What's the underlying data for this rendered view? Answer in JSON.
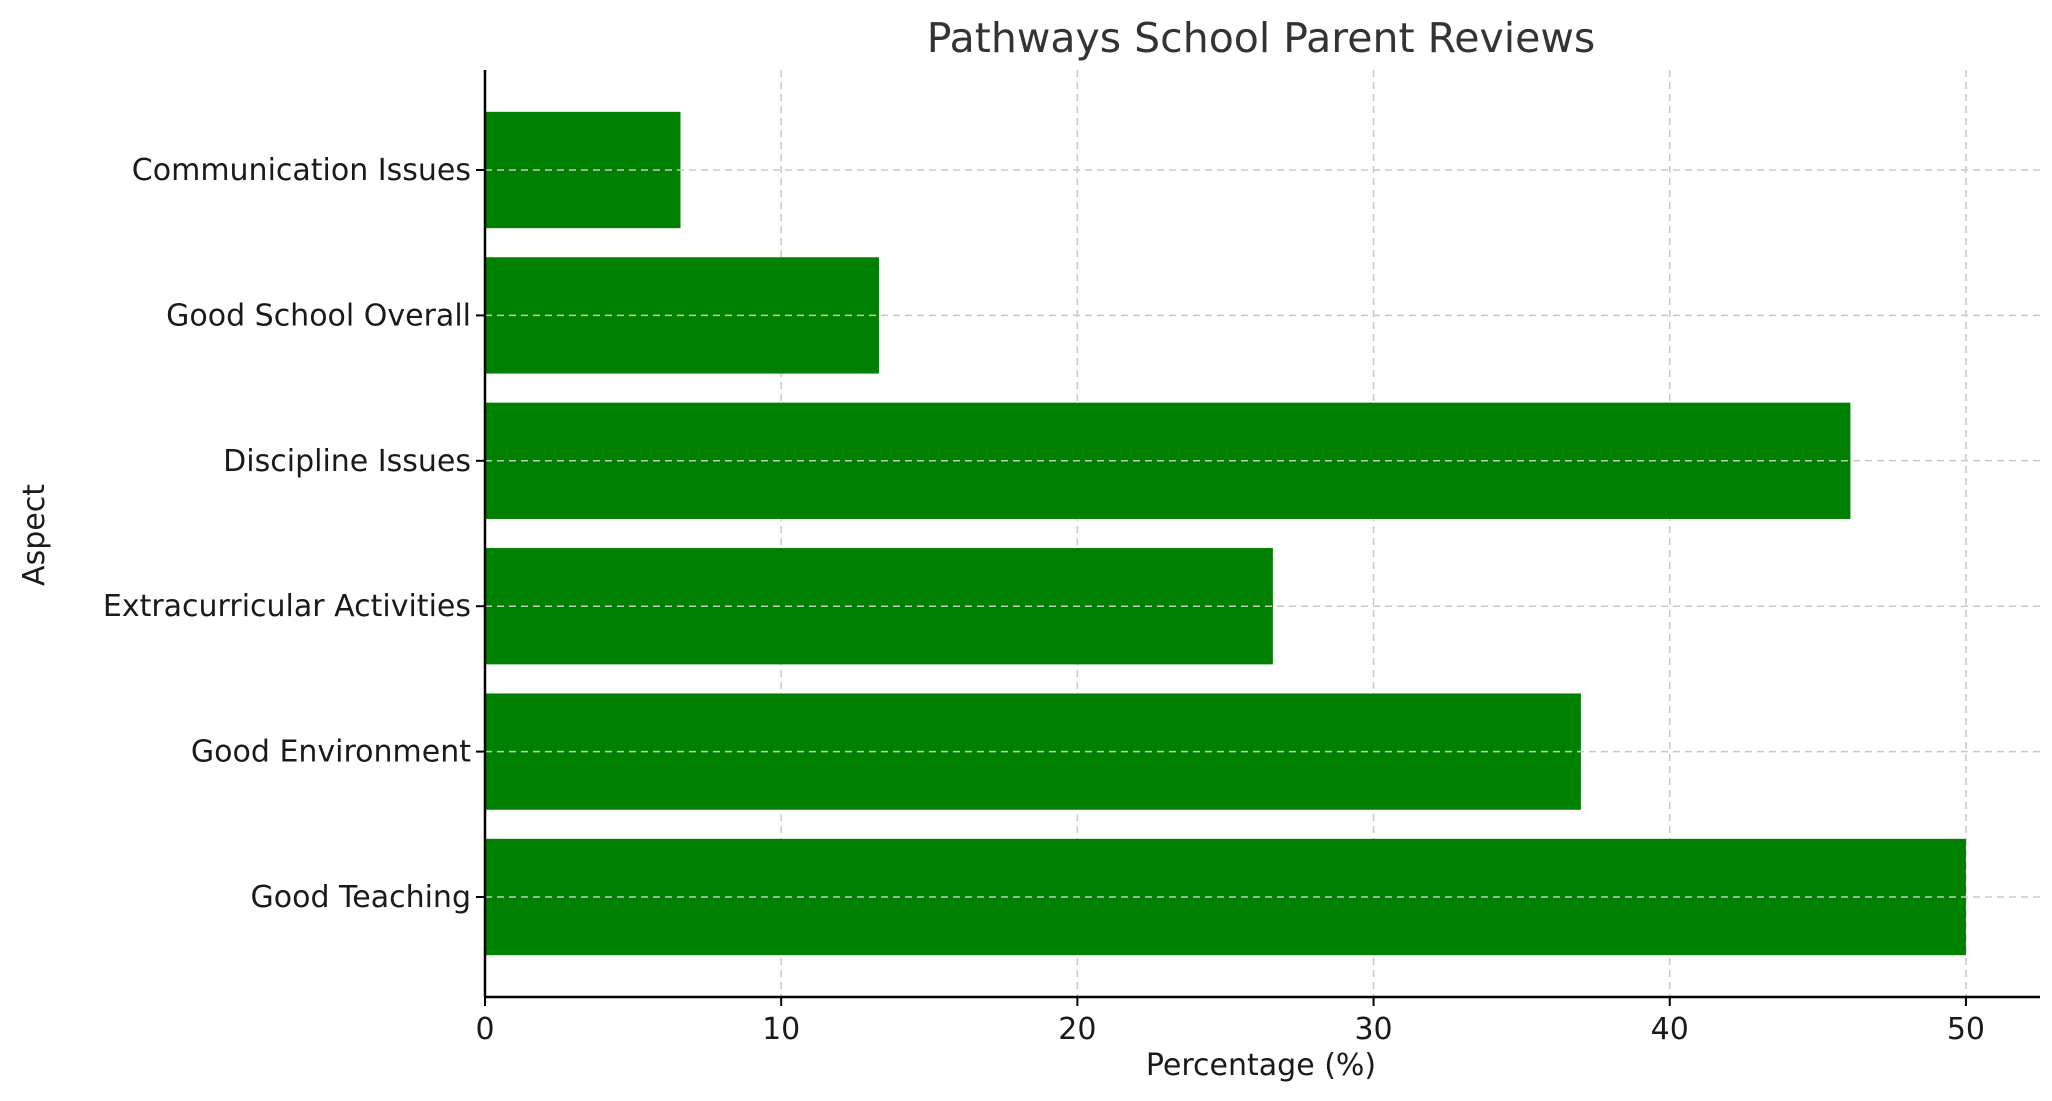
{
  "chart_data": {
    "type": "bar",
    "orientation": "horizontal",
    "title": "Pathways School Parent Reviews",
    "xlabel": "Percentage (%)",
    "ylabel": "Aspect",
    "categories": [
      "Good Teaching",
      "Good Environment",
      "Extracurricular Activities",
      "Discipline Issues",
      "Good School Overall",
      "Communication Issues"
    ],
    "values": [
      50,
      37,
      26.6,
      46.1,
      13.3,
      6.6
    ],
    "xlim": [
      0,
      52.5
    ],
    "xticks": [
      0,
      10,
      20,
      30,
      40,
      50
    ],
    "grid": true,
    "bar_color": "#008000"
  }
}
